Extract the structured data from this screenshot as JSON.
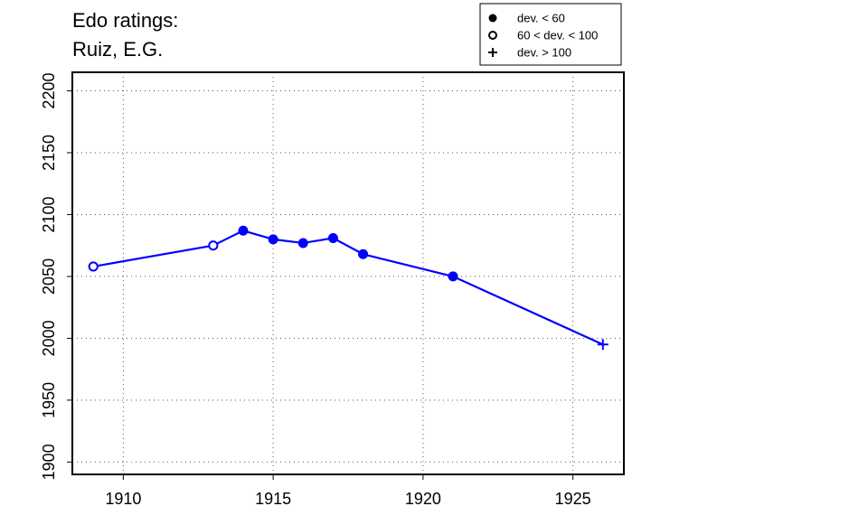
{
  "chart_data": {
    "type": "line",
    "title_lines": [
      "Edo ratings:",
      "Ruiz, E.G."
    ],
    "xlabel": "",
    "ylabel": "",
    "xlim": [
      1908.3,
      1926.7
    ],
    "ylim": [
      1890,
      2215
    ],
    "x_ticks": [
      "1910",
      "1915",
      "1920",
      "1925"
    ],
    "y_ticks": [
      "1900",
      "1950",
      "2000",
      "2050",
      "2100",
      "2150",
      "2200"
    ],
    "grid": true,
    "line_color": "#0000ff",
    "series": [
      {
        "points": [
          {
            "x": 1909,
            "y": 2058,
            "category": "mid"
          },
          {
            "x": 1913,
            "y": 2075,
            "category": "mid"
          },
          {
            "x": 1914,
            "y": 2087,
            "category": "low"
          },
          {
            "x": 1915,
            "y": 2080,
            "category": "low"
          },
          {
            "x": 1916,
            "y": 2077,
            "category": "low"
          },
          {
            "x": 1917,
            "y": 2081,
            "category": "low"
          },
          {
            "x": 1918,
            "y": 2068,
            "category": "low"
          },
          {
            "x": 1921,
            "y": 2050,
            "category": "low"
          },
          {
            "x": 1926,
            "y": 1995,
            "category": "high"
          }
        ]
      }
    ],
    "legend": {
      "position": "top-right",
      "entries": [
        {
          "symbol": "filled-circle",
          "category": "low",
          "label": "dev. < 60"
        },
        {
          "symbol": "open-circle",
          "category": "mid",
          "label": "60 < dev. < 100"
        },
        {
          "symbol": "plus",
          "category": "high",
          "label": "dev. > 100"
        }
      ]
    }
  }
}
